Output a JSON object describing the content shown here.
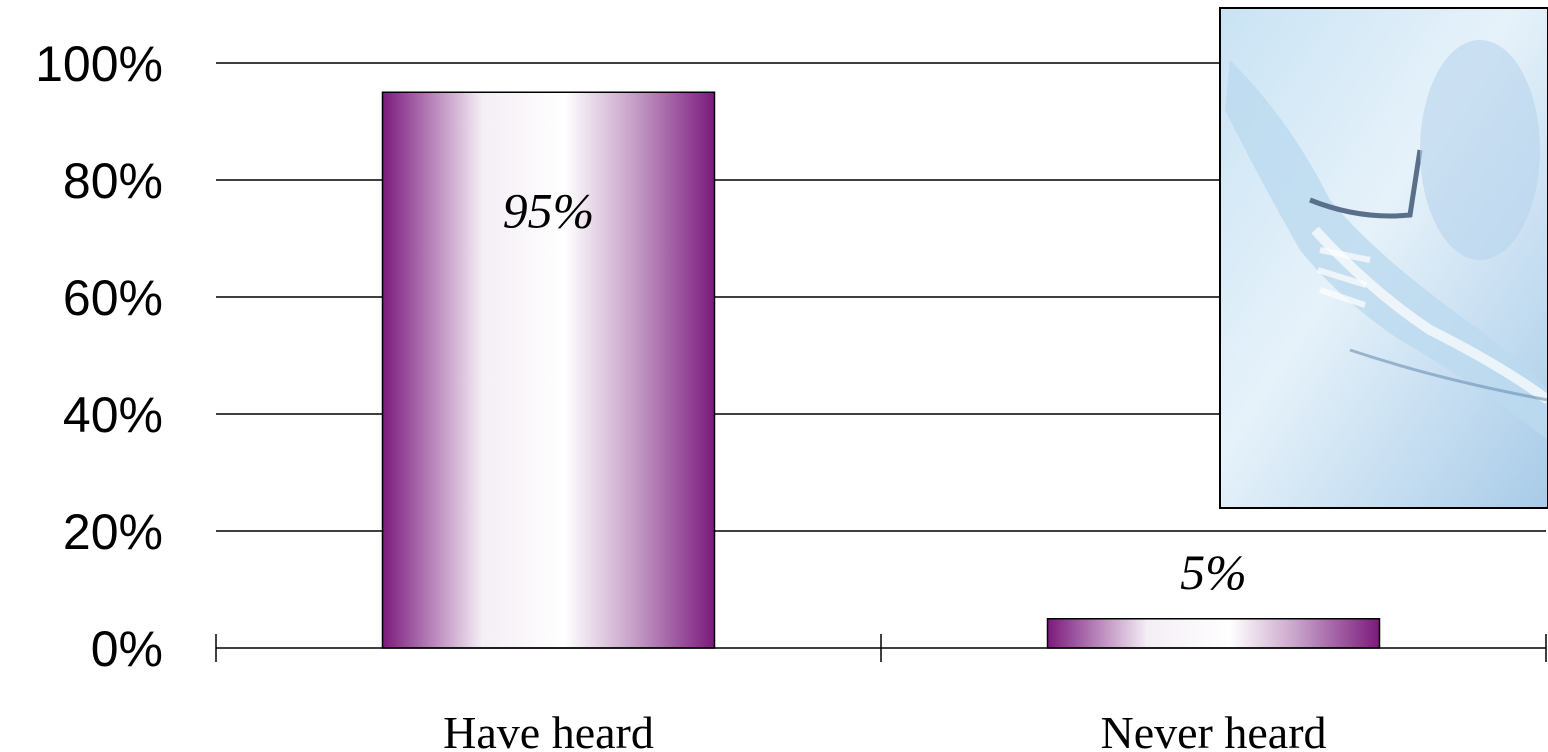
{
  "chart_data": {
    "type": "bar",
    "categories": [
      "Have heard",
      "Never heard"
    ],
    "values": [
      95,
      5
    ],
    "data_labels": [
      "95%",
      "5%"
    ],
    "ylim": [
      0,
      100
    ],
    "yticks": [
      "0%",
      "20%",
      "40%",
      "60%",
      "80%",
      "100%"
    ],
    "grid": true,
    "legend": "none",
    "bar_color": "#7b1a7d",
    "inset_image": "blue-photo-hands"
  }
}
